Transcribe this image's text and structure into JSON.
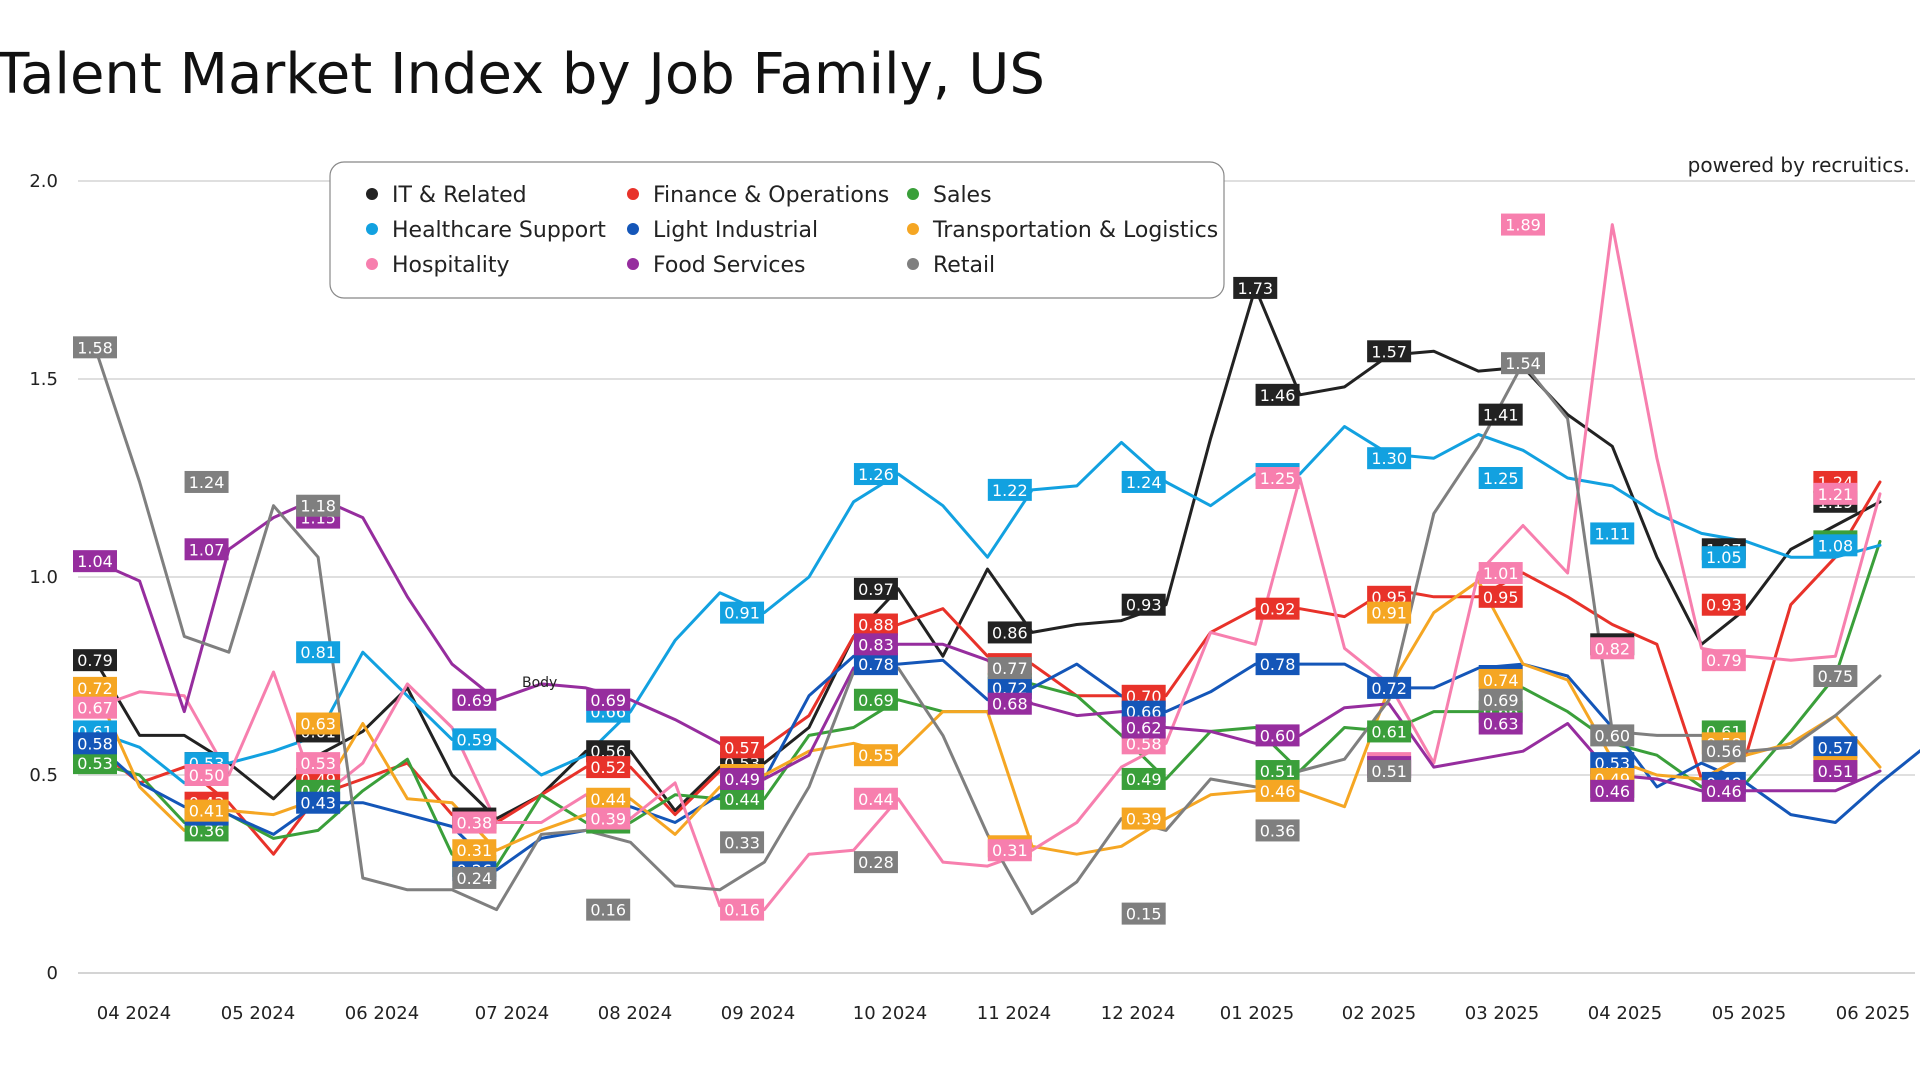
{
  "chart_data": {
    "type": "line",
    "title": "Talent Market Index by Job Family, US",
    "brand": "powered by recruitics.",
    "note": "Body",
    "xlabel": "",
    "ylabel": "",
    "ylim": [
      0,
      2.0
    ],
    "y_ticks": [
      "0",
      "0.5",
      "1.0",
      "1.5",
      "2.0"
    ],
    "y_tick_values": [
      0,
      0.5,
      1.0,
      1.5,
      2.0
    ],
    "grid": "horizontal",
    "legend_placement": "top-left",
    "x_categories": [
      "04 2024",
      "05 2024",
      "06 2024",
      "07 2024",
      "08 2024",
      "09 2024",
      "10 2024",
      "11 2024",
      "12 2024",
      "01 2025",
      "02 2025",
      "03 2025",
      "04 2025",
      "05 2025",
      "06 2025"
    ],
    "series": [
      {
        "name": "IT & Related",
        "color": "#222222",
        "values": [
          0.79,
          0.6,
          0.6,
          0.53,
          0.44,
          0.55,
          0.61,
          0.72,
          0.5,
          0.39,
          0.45,
          0.56,
          0.56,
          0.41,
          0.52,
          0.53,
          0.62,
          0.85,
          0.97,
          0.8,
          1.02,
          0.86,
          0.88,
          0.89,
          0.93,
          1.35,
          1.73,
          1.46,
          1.48,
          1.56,
          1.57,
          1.52,
          1.53,
          1.41,
          1.33,
          1.05,
          0.83,
          0.92,
          1.07,
          1.13,
          1.19
        ],
        "labels": [
          [
            0,
            0.79
          ],
          [
            5,
            0.53
          ],
          [
            10,
            0.61
          ],
          [
            17,
            0.39
          ],
          [
            23,
            0.56
          ],
          [
            29,
            0.53
          ],
          [
            35,
            0.97
          ],
          [
            41,
            0.86
          ],
          [
            47,
            0.93
          ],
          [
            52,
            1.73
          ],
          [
            53,
            1.46
          ],
          [
            58,
            1.57
          ],
          [
            63,
            1.41
          ],
          [
            68,
            0.83
          ],
          [
            73,
            1.07
          ],
          [
            78,
            1.19
          ]
        ]
      },
      {
        "name": "Finance & Operations",
        "color": "#e8322a",
        "values": [
          0.57,
          0.48,
          0.52,
          0.43,
          0.3,
          0.45,
          0.49,
          0.53,
          0.4,
          0.38,
          0.45,
          0.52,
          0.52,
          0.4,
          0.51,
          0.57,
          0.65,
          0.85,
          0.88,
          0.92,
          0.8,
          0.78,
          0.7,
          0.7,
          0.7,
          0.86,
          0.92,
          0.92,
          0.9,
          0.97,
          0.95,
          0.95,
          1.01,
          0.95,
          0.88,
          0.83,
          0.49,
          0.55,
          0.93,
          1.05,
          1.24
        ],
        "labels": [
          [
            0,
            0.57
          ],
          [
            5,
            0.43
          ],
          [
            10,
            0.49
          ],
          [
            17,
            0.38
          ],
          [
            23,
            0.52
          ],
          [
            29,
            0.57
          ],
          [
            35,
            0.88
          ],
          [
            41,
            0.78
          ],
          [
            47,
            0.7
          ],
          [
            53,
            0.92
          ],
          [
            58,
            0.95
          ],
          [
            63,
            0.95
          ],
          [
            68,
            0.49
          ],
          [
            73,
            0.93
          ],
          [
            78,
            1.24
          ]
        ]
      },
      {
        "name": "Sales",
        "color": "#3a9f3a",
        "values": [
          0.53,
          0.5,
          0.38,
          0.4,
          0.34,
          0.36,
          0.46,
          0.54,
          0.3,
          0.27,
          0.45,
          0.38,
          0.38,
          0.45,
          0.44,
          0.44,
          0.6,
          0.62,
          0.69,
          0.66,
          0.66,
          0.73,
          0.7,
          0.6,
          0.49,
          0.61,
          0.62,
          0.51,
          0.62,
          0.61,
          0.66,
          0.66,
          0.72,
          0.66,
          0.58,
          0.55,
          0.47,
          0.48,
          0.61,
          0.75,
          1.09
        ],
        "labels": [
          [
            0,
            0.53
          ],
          [
            5,
            0.36
          ],
          [
            10,
            0.46
          ],
          [
            17,
            0.27
          ],
          [
            23,
            0.38
          ],
          [
            29,
            0.44
          ],
          [
            35,
            0.69
          ],
          [
            41,
            0.73
          ],
          [
            47,
            0.49
          ],
          [
            53,
            0.51
          ],
          [
            58,
            0.61
          ],
          [
            63,
            0.66
          ],
          [
            68,
            0.47
          ],
          [
            73,
            0.61
          ],
          [
            78,
            1.09
          ]
        ]
      },
      {
        "name": "Healthcare Support",
        "color": "#12a1e0",
        "values": [
          0.61,
          0.57,
          0.48,
          0.53,
          0.56,
          0.6,
          0.81,
          0.7,
          0.59,
          0.59,
          0.5,
          0.55,
          0.66,
          0.84,
          0.96,
          0.91,
          1.0,
          1.19,
          1.26,
          1.18,
          1.05,
          1.22,
          1.23,
          1.34,
          1.24,
          1.18,
          1.26,
          1.26,
          1.38,
          1.31,
          1.3,
          1.36,
          1.32,
          1.25,
          1.23,
          1.16,
          1.11,
          1.09,
          1.05,
          1.05,
          1.08
        ],
        "labels": [
          [
            0,
            0.61
          ],
          [
            5,
            0.53
          ],
          [
            10,
            0.81
          ],
          [
            17,
            0.59
          ],
          [
            23,
            0.66
          ],
          [
            29,
            0.91
          ],
          [
            35,
            1.26
          ],
          [
            41,
            1.22
          ],
          [
            47,
            1.24
          ],
          [
            53,
            1.26
          ],
          [
            58,
            1.3
          ],
          [
            63,
            1.25
          ],
          [
            68,
            1.11
          ],
          [
            73,
            1.05
          ],
          [
            78,
            1.08
          ]
        ]
      },
      {
        "name": "Light Industrial",
        "color": "#1456b8",
        "values": [
          0.58,
          0.48,
          0.42,
          0.4,
          0.35,
          0.43,
          0.43,
          0.4,
          0.37,
          0.26,
          0.34,
          0.36,
          0.42,
          0.38,
          0.45,
          0.49,
          0.7,
          0.8,
          0.78,
          0.79,
          0.69,
          0.72,
          0.78,
          0.7,
          0.66,
          0.71,
          0.78,
          0.78,
          0.78,
          0.72,
          0.72,
          0.77,
          0.78,
          0.75,
          0.62,
          0.47,
          0.53,
          0.48,
          0.4,
          0.38,
          0.48,
          0.57
        ],
        "labels": [
          [
            0,
            0.58
          ],
          [
            5,
            0.4
          ],
          [
            10,
            0.43
          ],
          [
            17,
            0.26
          ],
          [
            23,
            0.42
          ],
          [
            29,
            0.49
          ],
          [
            35,
            0.78
          ],
          [
            41,
            0.72
          ],
          [
            47,
            0.66
          ],
          [
            53,
            0.78
          ],
          [
            58,
            0.72
          ],
          [
            63,
            0.75
          ],
          [
            68,
            0.53
          ],
          [
            73,
            0.48
          ],
          [
            78,
            0.57
          ]
        ]
      },
      {
        "name": "Transportation & Logistics",
        "color": "#f5a623",
        "values": [
          0.72,
          0.47,
          0.36,
          0.41,
          0.4,
          0.44,
          0.63,
          0.44,
          0.43,
          0.31,
          0.36,
          0.4,
          0.44,
          0.35,
          0.47,
          0.5,
          0.56,
          0.58,
          0.55,
          0.66,
          0.66,
          0.32,
          0.3,
          0.32,
          0.39,
          0.45,
          0.46,
          0.46,
          0.42,
          0.72,
          0.91,
          0.99,
          0.78,
          0.74,
          0.54,
          0.5,
          0.49,
          0.55,
          0.58,
          0.65,
          0.52
        ],
        "labels": [
          [
            0,
            0.72
          ],
          [
            5,
            0.41
          ],
          [
            10,
            0.63
          ],
          [
            17,
            0.31
          ],
          [
            23,
            0.44
          ],
          [
            29,
            0.5
          ],
          [
            35,
            0.55
          ],
          [
            41,
            0.32
          ],
          [
            47,
            0.39
          ],
          [
            53,
            0.46
          ],
          [
            58,
            0.91
          ],
          [
            63,
            0.74
          ],
          [
            68,
            0.49
          ],
          [
            73,
            0.58
          ],
          [
            78,
            0.52
          ]
        ]
      },
      {
        "name": "Hospitality",
        "color": "#f77fae",
        "values": [
          0.67,
          0.71,
          0.7,
          0.5,
          0.76,
          0.44,
          0.53,
          0.73,
          0.62,
          0.38,
          0.38,
          0.45,
          0.39,
          0.48,
          0.17,
          0.16,
          0.3,
          0.31,
          0.44,
          0.28,
          0.27,
          0.31,
          0.38,
          0.52,
          0.58,
          0.86,
          0.83,
          1.25,
          0.82,
          0.73,
          0.53,
          1.01,
          1.13,
          1.01,
          1.89,
          1.3,
          0.82,
          0.8,
          0.79,
          0.8,
          1.21
        ],
        "labels": [
          [
            0,
            0.67
          ],
          [
            5,
            0.5
          ],
          [
            10,
            0.53
          ],
          [
            17,
            0.38
          ],
          [
            23,
            0.39
          ],
          [
            29,
            0.16
          ],
          [
            35,
            0.44
          ],
          [
            41,
            0.31
          ],
          [
            47,
            0.58
          ],
          [
            53,
            1.25
          ],
          [
            58,
            0.53
          ],
          [
            63,
            1.01
          ],
          [
            64,
            1.89
          ],
          [
            68,
            0.82
          ],
          [
            73,
            0.79
          ],
          [
            78,
            1.21
          ]
        ]
      },
      {
        "name": "Food Services",
        "color": "#962d9e",
        "values": [
          1.04,
          0.99,
          0.66,
          1.07,
          1.15,
          1.2,
          1.15,
          0.95,
          0.78,
          0.69,
          0.73,
          0.72,
          0.69,
          0.64,
          0.58,
          0.49,
          0.55,
          0.77,
          0.83,
          0.83,
          0.79,
          0.68,
          0.65,
          0.66,
          0.62,
          0.61,
          0.58,
          0.6,
          0.67,
          0.68,
          0.52,
          0.54,
          0.56,
          0.63,
          0.5,
          0.49,
          0.46,
          0.46,
          0.46,
          0.46,
          0.51
        ],
        "labels": [
          [
            0,
            1.04
          ],
          [
            5,
            1.07
          ],
          [
            10,
            1.15
          ],
          [
            17,
            0.69
          ],
          [
            23,
            0.69
          ],
          [
            29,
            0.49
          ],
          [
            35,
            0.83
          ],
          [
            41,
            0.68
          ],
          [
            47,
            0.62
          ],
          [
            53,
            0.6
          ],
          [
            58,
            0.52
          ],
          [
            63,
            0.63
          ],
          [
            68,
            0.46
          ],
          [
            73,
            0.46
          ],
          [
            78,
            0.51
          ]
        ]
      },
      {
        "name": "Retail",
        "color": "#7f7f7f",
        "values": [
          1.58,
          1.24,
          0.85,
          0.81,
          1.18,
          1.05,
          0.24,
          0.21,
          0.21,
          0.16,
          0.35,
          0.36,
          0.33,
          0.22,
          0.21,
          0.28,
          0.47,
          0.76,
          0.77,
          0.6,
          0.35,
          0.15,
          0.23,
          0.39,
          0.36,
          0.49,
          0.47,
          0.51,
          0.54,
          0.69,
          1.16,
          1.33,
          1.54,
          1.4,
          0.61,
          0.6,
          0.6,
          0.56,
          0.57,
          0.65,
          0.75
        ],
        "labels": [
          [
            0,
            1.58
          ],
          [
            5,
            1.24
          ],
          [
            10,
            1.18
          ],
          [
            17,
            0.24
          ],
          [
            23,
            0.16
          ],
          [
            29,
            0.33
          ],
          [
            35,
            0.28
          ],
          [
            41,
            0.77
          ],
          [
            47,
            0.15
          ],
          [
            53,
            0.36
          ],
          [
            58,
            0.51
          ],
          [
            63,
            0.69
          ],
          [
            64,
            1.54
          ],
          [
            68,
            0.6
          ],
          [
            73,
            0.56
          ],
          [
            78,
            0.75
          ]
        ]
      }
    ]
  }
}
